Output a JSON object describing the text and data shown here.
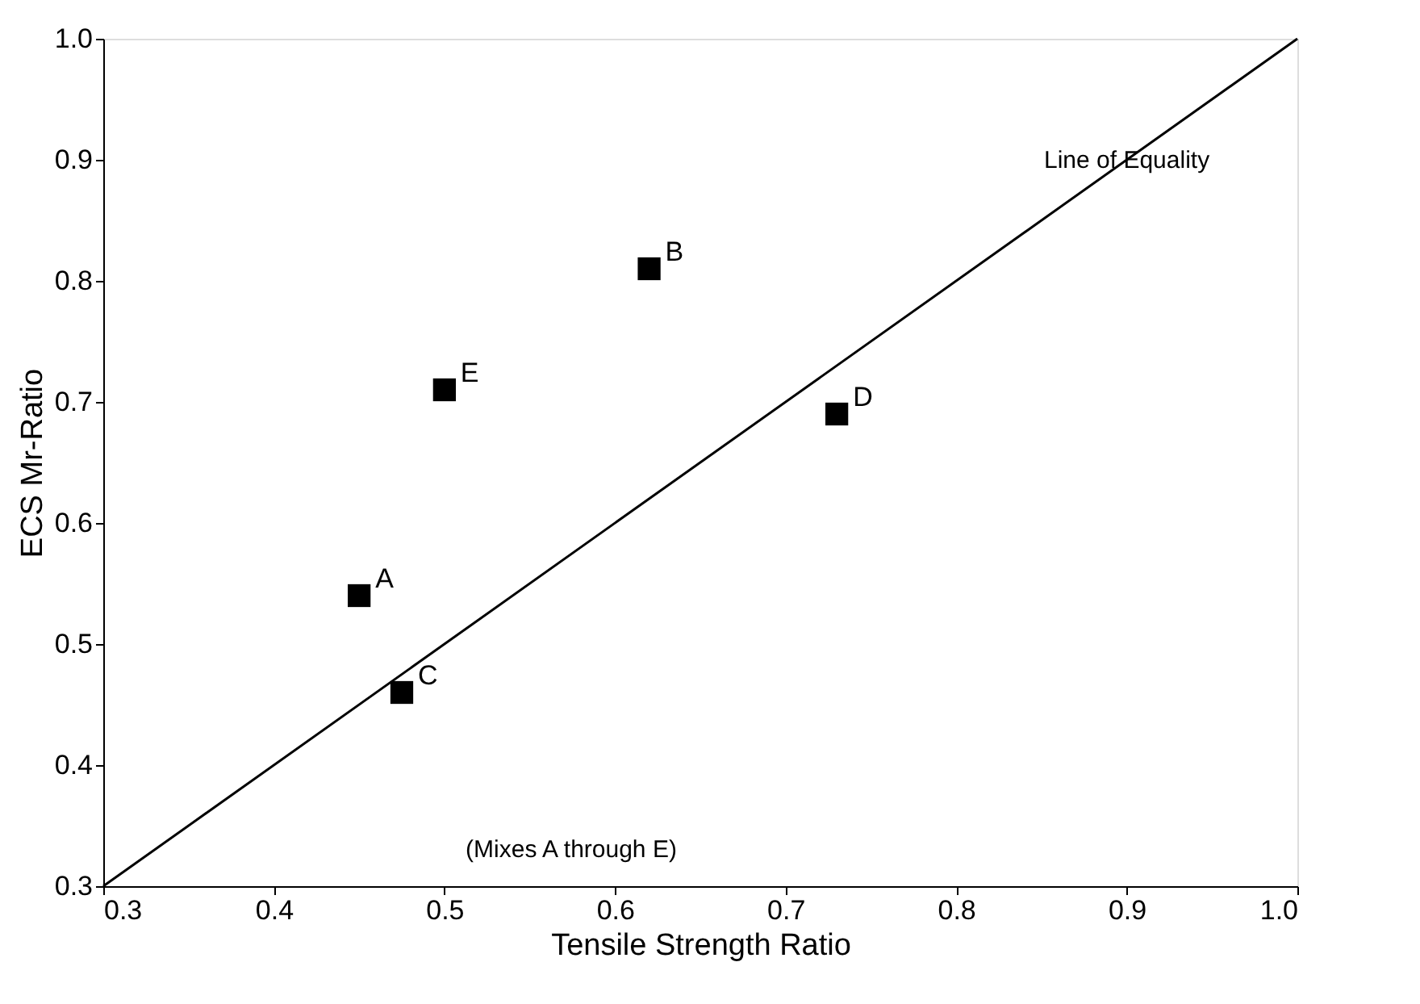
{
  "chart_data": {
    "type": "scatter",
    "xlabel": "Tensile Strength Ratio",
    "ylabel": "ECS Mr-Ratio",
    "xlim": [
      0.3,
      1.0
    ],
    "ylim": [
      0.3,
      1.0
    ],
    "xticks": [
      0.3,
      0.4,
      0.5,
      0.6,
      0.7,
      0.8,
      0.9,
      {
        "value": 1.0,
        "label": "1.0"
      }
    ],
    "yticks": [
      0.3,
      0.4,
      0.5,
      0.6,
      0.7,
      0.8,
      0.9,
      {
        "value": 1.0,
        "label": "1.0"
      }
    ],
    "grid": false,
    "marker": "square",
    "series": [
      {
        "type": "scatter",
        "color": "#000000",
        "x": [
          0.45,
          0.62,
          0.475,
          0.73,
          0.5
        ],
        "values": [
          0.54,
          0.81,
          0.46,
          0.69,
          0.71
        ]
      },
      {
        "type": "line",
        "color": "#000000",
        "marker": "none",
        "x": [
          0.3,
          1.0
        ],
        "values": [
          0.3,
          1.0
        ]
      }
    ],
    "annotations": [
      {
        "text": "A",
        "x": 0.45,
        "y": 0.54
      },
      {
        "text": "B",
        "x": 0.62,
        "y": 0.81
      },
      {
        "text": "C",
        "x": 0.475,
        "y": 0.46
      },
      {
        "text": "D",
        "x": 0.73,
        "y": 0.69
      },
      {
        "text": "E",
        "x": 0.5,
        "y": 0.71
      },
      {
        "text": "Line of Equality",
        "x": 0.9,
        "y": 0.9
      },
      "(Mixes A through E)"
    ]
  }
}
